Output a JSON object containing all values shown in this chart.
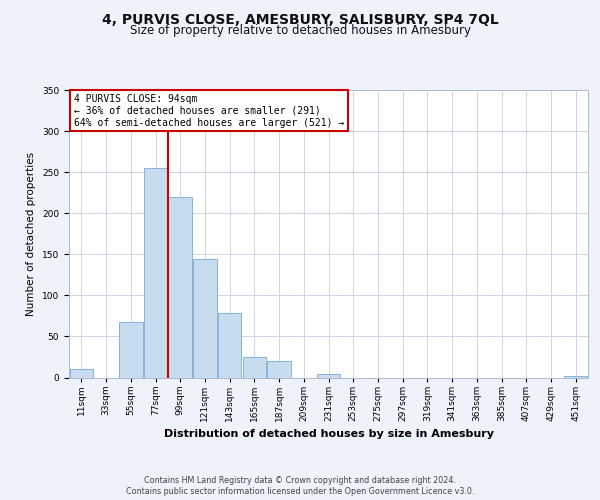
{
  "title": "4, PURVIS CLOSE, AMESBURY, SALISBURY, SP4 7QL",
  "subtitle": "Size of property relative to detached houses in Amesbury",
  "xlabel": "Distribution of detached houses by size in Amesbury",
  "ylabel": "Number of detached properties",
  "footer_line1": "Contains HM Land Registry data © Crown copyright and database right 2024.",
  "footer_line2": "Contains public sector information licensed under the Open Government Licence v3.0.",
  "annotation_line1": "4 PURVIS CLOSE: 94sqm",
  "annotation_line2": "← 36% of detached houses are smaller (291)",
  "annotation_line3": "64% of semi-detached houses are larger (521) →",
  "bin_labels": [
    "11sqm",
    "33sqm",
    "55sqm",
    "77sqm",
    "99sqm",
    "121sqm",
    "143sqm",
    "165sqm",
    "187sqm",
    "209sqm",
    "231sqm",
    "253sqm",
    "275sqm",
    "297sqm",
    "319sqm",
    "341sqm",
    "363sqm",
    "385sqm",
    "407sqm",
    "429sqm",
    "451sqm"
  ],
  "bar_heights": [
    10,
    0,
    68,
    255,
    220,
    144,
    79,
    25,
    20,
    0,
    4,
    0,
    0,
    0,
    0,
    0,
    0,
    0,
    0,
    0,
    2
  ],
  "bar_color": "#c8dcf0",
  "bar_edge_color": "#88b4d8",
  "vline_x_index": 4,
  "vline_color": "#cc0000",
  "ylim": [
    0,
    350
  ],
  "n_bins": 21,
  "background_color": "#eef2fb",
  "plot_bg_color": "#ffffff",
  "grid_color": "#c8d0e8",
  "annotation_box_edge": "#cc0000",
  "annotation_box_bg": "#ffffff",
  "title_fontsize": 10,
  "subtitle_fontsize": 8.5,
  "ylabel_fontsize": 7.5,
  "xlabel_fontsize": 8,
  "tick_fontsize": 6.5,
  "annot_fontsize": 7,
  "footer_fontsize": 5.8
}
